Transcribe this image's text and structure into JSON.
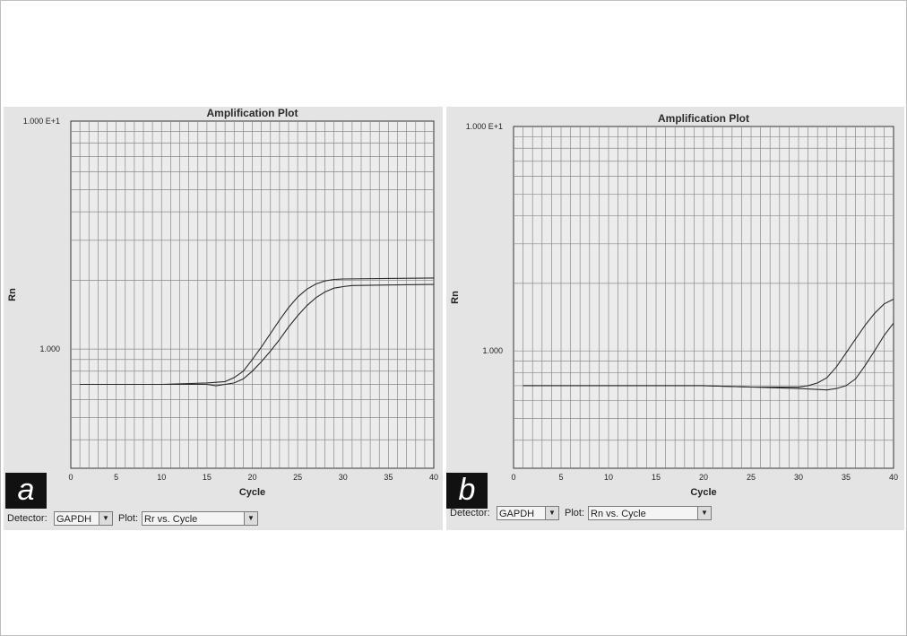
{
  "panels": [
    {
      "label": "a",
      "detector_label": "Detector:",
      "detector_value": "GAPDH",
      "plot_label": "Plot:",
      "plot_value": "Rr vs. Cycle"
    },
    {
      "label": "b",
      "detector_label": "Detector:",
      "detector_value": "GAPDH",
      "plot_label": "Plot:",
      "plot_value": "Rn vs. Cycle"
    }
  ],
  "icons": {
    "dropdown": "chevron-down-icon"
  },
  "chart_data": [
    {
      "type": "line",
      "title": "Amplification Plot",
      "xlabel": "Cycle",
      "ylabel": "Rn",
      "x_ticks": [
        0,
        5,
        10,
        15,
        20,
        25,
        30,
        35,
        40
      ],
      "y_tick_labels": [
        "1.000 E+1",
        "1.000"
      ],
      "y_scale": "log",
      "xlim": [
        0,
        40
      ],
      "ylim": [
        0.3,
        10
      ],
      "grid": true,
      "series": [
        {
          "x": [
            1,
            5,
            10,
            15,
            17,
            18,
            19,
            20,
            21,
            22,
            23,
            24,
            25,
            26,
            27,
            28,
            29,
            30,
            35,
            40
          ],
          "values": [
            0.7,
            0.7,
            0.7,
            0.71,
            0.72,
            0.75,
            0.8,
            0.9,
            1.02,
            1.17,
            1.34,
            1.52,
            1.69,
            1.83,
            1.93,
            1.99,
            2.02,
            2.03,
            2.04,
            2.05
          ]
        },
        {
          "x": [
            1,
            5,
            10,
            15,
            16,
            17,
            18,
            19,
            20,
            21,
            22,
            23,
            24,
            25,
            26,
            27,
            28,
            29,
            30,
            31,
            35,
            40
          ],
          "values": [
            0.7,
            0.7,
            0.7,
            0.7,
            0.69,
            0.7,
            0.71,
            0.74,
            0.8,
            0.88,
            0.98,
            1.1,
            1.25,
            1.4,
            1.55,
            1.68,
            1.78,
            1.85,
            1.88,
            1.9,
            1.91,
            1.92
          ]
        }
      ]
    },
    {
      "type": "line",
      "title": "Amplification Plot",
      "xlabel": "Cycle",
      "ylabel": "Rn",
      "x_ticks": [
        0,
        5,
        10,
        15,
        20,
        25,
        30,
        35,
        40
      ],
      "y_tick_labels": [
        "1.000 E+1",
        "1.000"
      ],
      "y_scale": "log",
      "xlim": [
        0,
        40
      ],
      "ylim": [
        0.3,
        10
      ],
      "grid": true,
      "series": [
        {
          "x": [
            1,
            10,
            20,
            25,
            30,
            31,
            32,
            33,
            34,
            35,
            36,
            37,
            38,
            39,
            40
          ],
          "values": [
            0.7,
            0.7,
            0.7,
            0.69,
            0.69,
            0.7,
            0.72,
            0.76,
            0.85,
            0.98,
            1.13,
            1.3,
            1.47,
            1.62,
            1.7
          ]
        },
        {
          "x": [
            1,
            10,
            20,
            25,
            30,
            33,
            34,
            35,
            36,
            37,
            38,
            39,
            40
          ],
          "values": [
            0.7,
            0.7,
            0.7,
            0.69,
            0.68,
            0.67,
            0.68,
            0.7,
            0.75,
            0.86,
            1.0,
            1.17,
            1.33
          ]
        }
      ]
    }
  ]
}
